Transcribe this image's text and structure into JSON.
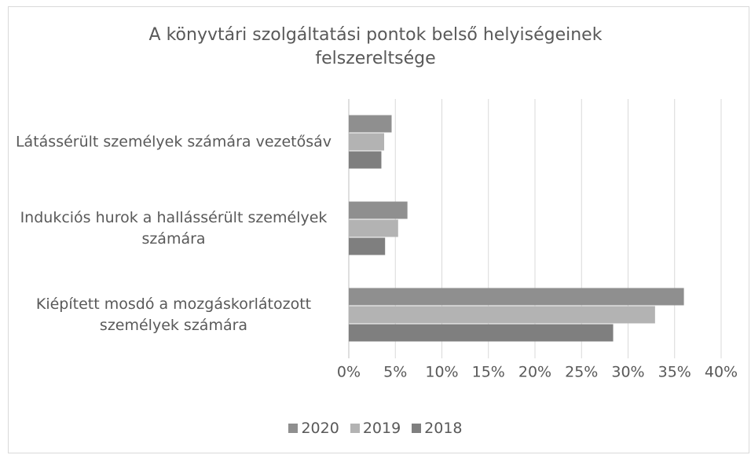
{
  "chart_data": {
    "type": "bar",
    "orientation": "horizontal",
    "title": "A könyvtári szolgáltatási pontok belső helyiségeinek felszereltsége",
    "categories": [
      "Látássérült személyek számára vezetősáv",
      "Indukciós hurok a hallássérült személyek számára",
      "Kiépített mosdó a mozgáskorlátozott személyek számára"
    ],
    "series": [
      {
        "name": "2020",
        "color": "#8f8f8f",
        "values": [
          4.6,
          6.3,
          36.0
        ]
      },
      {
        "name": "2019",
        "color": "#b3b3b3",
        "values": [
          3.8,
          5.3,
          32.9
        ]
      },
      {
        "name": "2018",
        "color": "#7f7f7f",
        "values": [
          3.5,
          3.9,
          28.4
        ]
      }
    ],
    "xlim": [
      0,
      40
    ],
    "xticks": [
      {
        "value": 0,
        "label": "0%"
      },
      {
        "value": 5,
        "label": "5%"
      },
      {
        "value": 10,
        "label": "10%"
      },
      {
        "value": 15,
        "label": "15%"
      },
      {
        "value": 20,
        "label": "20%"
      },
      {
        "value": 25,
        "label": "25%"
      },
      {
        "value": 30,
        "label": "30%"
      },
      {
        "value": 35,
        "label": "35%"
      },
      {
        "value": 40,
        "label": "40%"
      }
    ],
    "grid": true,
    "legend": "bottom"
  }
}
